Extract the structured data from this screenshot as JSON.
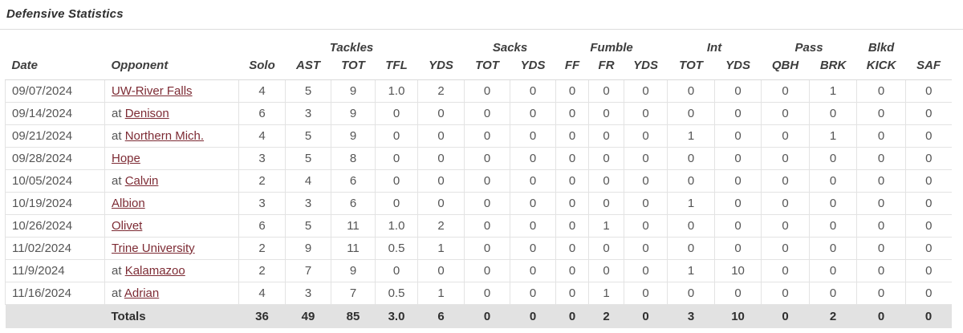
{
  "page": {
    "title": "Defensive Statistics"
  },
  "colors": {
    "link_maroon": "#7d2b34",
    "totals_row_bg": "#e2e2e2",
    "row_border": "#e3e3e3",
    "header_text": "#3d3d3d",
    "body_text": "#555555"
  },
  "table": {
    "group_headers": [
      {
        "label": "",
        "colspan": "2"
      },
      {
        "label": "Tackles",
        "colspan": "5"
      },
      {
        "label": "Sacks",
        "colspan": "2"
      },
      {
        "label": "Fumble",
        "colspan": "3"
      },
      {
        "label": "Int",
        "colspan": "2"
      },
      {
        "label": "Pass",
        "colspan": "2"
      },
      {
        "label": "Blkd",
        "colspan": "1"
      },
      {
        "label": "",
        "colspan": "1"
      }
    ],
    "columns": [
      "Date",
      "Opponent",
      "Solo",
      "AST",
      "TOT",
      "TFL",
      "YDS",
      "TOT",
      "YDS",
      "FF",
      "FR",
      "YDS",
      "TOT",
      "YDS",
      "QBH",
      "BRK",
      "KICK",
      "SAF"
    ],
    "rows": [
      {
        "date": "09/07/2024",
        "opponent": {
          "prefix": "",
          "name": "UW-River Falls"
        },
        "stats": [
          "4",
          "5",
          "9",
          "1.0",
          "2",
          "0",
          "0",
          "0",
          "0",
          "0",
          "0",
          "0",
          "0",
          "1",
          "0",
          "0"
        ]
      },
      {
        "date": "09/14/2024",
        "opponent": {
          "prefix": "at",
          "name": "Denison"
        },
        "stats": [
          "6",
          "3",
          "9",
          "0",
          "0",
          "0",
          "0",
          "0",
          "0",
          "0",
          "0",
          "0",
          "0",
          "0",
          "0",
          "0"
        ]
      },
      {
        "date": "09/21/2024",
        "opponent": {
          "prefix": "at",
          "name": "Northern Mich."
        },
        "stats": [
          "4",
          "5",
          "9",
          "0",
          "0",
          "0",
          "0",
          "0",
          "0",
          "0",
          "1",
          "0",
          "0",
          "1",
          "0",
          "0"
        ]
      },
      {
        "date": "09/28/2024",
        "opponent": {
          "prefix": "",
          "name": "Hope"
        },
        "stats": [
          "3",
          "5",
          "8",
          "0",
          "0",
          "0",
          "0",
          "0",
          "0",
          "0",
          "0",
          "0",
          "0",
          "0",
          "0",
          "0"
        ]
      },
      {
        "date": "10/05/2024",
        "opponent": {
          "prefix": "at",
          "name": "Calvin"
        },
        "stats": [
          "2",
          "4",
          "6",
          "0",
          "0",
          "0",
          "0",
          "0",
          "0",
          "0",
          "0",
          "0",
          "0",
          "0",
          "0",
          "0"
        ]
      },
      {
        "date": "10/19/2024",
        "opponent": {
          "prefix": "",
          "name": "Albion"
        },
        "stats": [
          "3",
          "3",
          "6",
          "0",
          "0",
          "0",
          "0",
          "0",
          "0",
          "0",
          "1",
          "0",
          "0",
          "0",
          "0",
          "0"
        ]
      },
      {
        "date": "10/26/2024",
        "opponent": {
          "prefix": "",
          "name": "Olivet"
        },
        "stats": [
          "6",
          "5",
          "11",
          "1.0",
          "2",
          "0",
          "0",
          "0",
          "1",
          "0",
          "0",
          "0",
          "0",
          "0",
          "0",
          "0"
        ]
      },
      {
        "date": "11/02/2024",
        "opponent": {
          "prefix": "",
          "name": "Trine University"
        },
        "stats": [
          "2",
          "9",
          "11",
          "0.5",
          "1",
          "0",
          "0",
          "0",
          "0",
          "0",
          "0",
          "0",
          "0",
          "0",
          "0",
          "0"
        ]
      },
      {
        "date": "11/9/2024",
        "opponent": {
          "prefix": "at",
          "name": "Kalamazoo"
        },
        "stats": [
          "2",
          "7",
          "9",
          "0",
          "0",
          "0",
          "0",
          "0",
          "0",
          "0",
          "1",
          "10",
          "0",
          "0",
          "0",
          "0"
        ]
      },
      {
        "date": "11/16/2024",
        "opponent": {
          "prefix": "at",
          "name": "Adrian"
        },
        "stats": [
          "4",
          "3",
          "7",
          "0.5",
          "1",
          "0",
          "0",
          "0",
          "1",
          "0",
          "0",
          "0",
          "0",
          "0",
          "0",
          "0"
        ]
      }
    ],
    "totals": {
      "label": "Totals",
      "stats": [
        "36",
        "49",
        "85",
        "3.0",
        "6",
        "0",
        "0",
        "0",
        "2",
        "0",
        "3",
        "10",
        "0",
        "2",
        "0",
        "0"
      ]
    }
  }
}
